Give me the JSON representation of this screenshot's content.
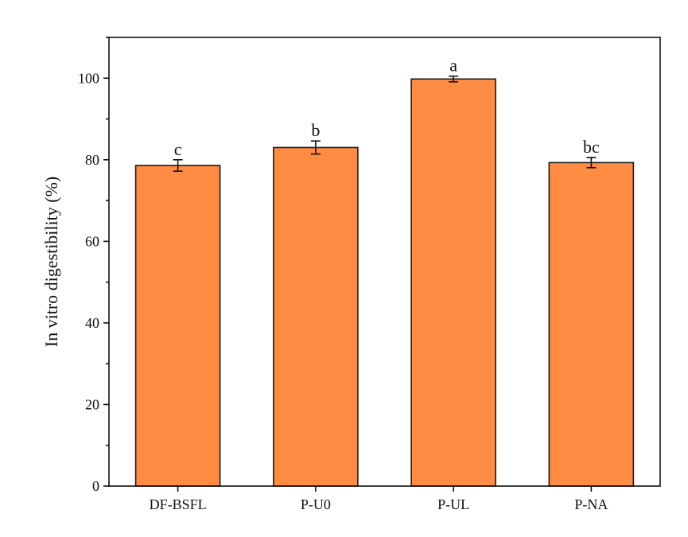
{
  "chart_data": {
    "type": "bar",
    "title": "",
    "xlabel": "",
    "ylabel": "In vitro digestibility (%)",
    "ylim": [
      0,
      110
    ],
    "yticks": [
      0,
      20,
      40,
      60,
      80,
      100
    ],
    "grid": false,
    "categories": [
      "DF-BSFL",
      "P-U0",
      "P-UL",
      "P-NA"
    ],
    "values": [
      78.6,
      83.0,
      99.8,
      79.3
    ],
    "errors": [
      1.4,
      1.6,
      0.7,
      1.25
    ],
    "significance_letters": [
      "c",
      "b",
      "a",
      "bc"
    ],
    "bar_color": "#FF8C42",
    "edge_color": "#1a1a1a"
  }
}
